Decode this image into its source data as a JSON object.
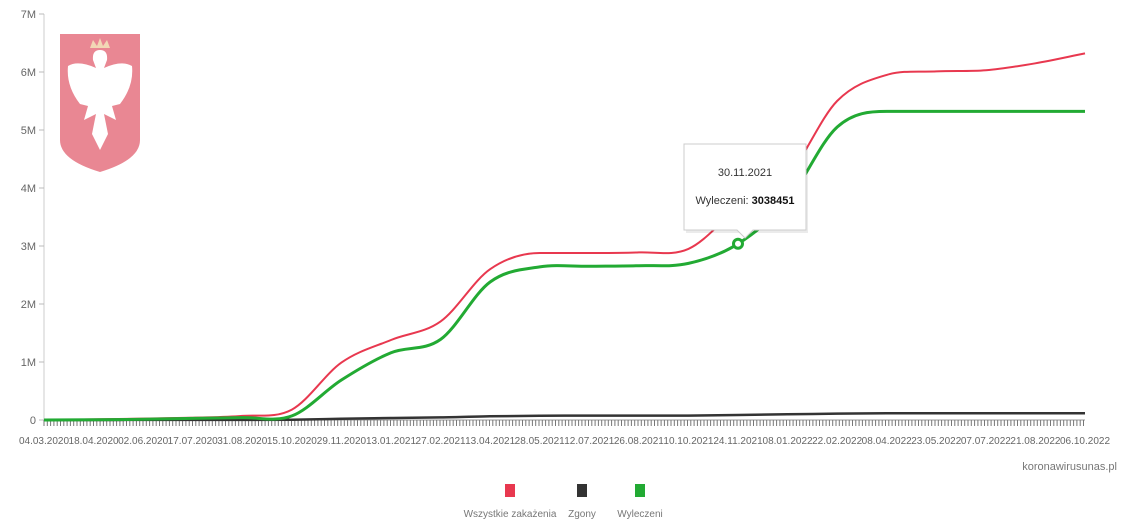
{
  "chart_data": {
    "type": "line",
    "title": "",
    "xlabel": "",
    "ylabel": "",
    "ylim": [
      0,
      7000000
    ],
    "y_ticks": [
      "0",
      "1M",
      "2M",
      "3M",
      "4M",
      "5M",
      "6M",
      "7M"
    ],
    "y_tick_values": [
      0,
      1000000,
      2000000,
      3000000,
      4000000,
      5000000,
      6000000,
      7000000
    ],
    "x_tick_labels": [
      "04.03.2020",
      "18.04.2020",
      "02.06.2020",
      "17.07.2020",
      "31.08.2020",
      "15.10.2020",
      "29.11.2020",
      "13.01.2021",
      "27.02.2021",
      "13.04.2021",
      "28.05.2021",
      "12.07.2021",
      "26.08.2021",
      "10.10.2021",
      "24.11.2021",
      "08.01.2022",
      "22.02.2022",
      "08.04.2022",
      "23.05.2022",
      "07.07.2022",
      "21.08.2022",
      "06.10.2022"
    ],
    "x": [
      "04.03.2020",
      "18.04.2020",
      "02.06.2020",
      "17.07.2020",
      "31.08.2020",
      "15.10.2020",
      "29.11.2020",
      "13.01.2021",
      "27.02.2021",
      "13.04.2021",
      "28.05.2021",
      "12.07.2021",
      "26.08.2021",
      "10.10.2021",
      "24.11.2021",
      "08.01.2022",
      "22.02.2022",
      "08.04.2022",
      "23.05.2022",
      "07.07.2022",
      "21.08.2022",
      "06.10.2022"
    ],
    "series": [
      {
        "name": "Wszystkie zakażenia",
        "color": "#e8384f",
        "values": [
          0,
          10000,
          25000,
          40000,
          70000,
          180000,
          990000,
          1380000,
          1700000,
          2600000,
          2880000,
          2880000,
          2890000,
          2950000,
          3650000,
          4200000,
          5500000,
          5950000,
          6010000,
          6030000,
          6150000,
          6320000
        ]
      },
      {
        "name": "Zgony",
        "color": "#333333",
        "values": [
          0,
          500,
          1500,
          1700,
          2000,
          5000,
          20000,
          35000,
          44000,
          64000,
          74000,
          75000,
          75500,
          76500,
          86000,
          98000,
          110000,
          115000,
          116000,
          116500,
          117000,
          117500
        ]
      },
      {
        "name": "Wyleczeni",
        "color": "#22aa33",
        "values": [
          0,
          4000,
          12000,
          28000,
          42000,
          70000,
          690000,
          1160000,
          1390000,
          2380000,
          2640000,
          2650000,
          2660000,
          2700000,
          3038451,
          3780000,
          5050000,
          5320000,
          5320000,
          5320000,
          5320000,
          5320000
        ]
      }
    ],
    "legend_position": "bottom",
    "grid": false,
    "tooltip": {
      "date": "30.11.2021",
      "label": "Wyleczeni: ",
      "value": "3038451",
      "point_x": "24.11.2021",
      "point_value": 3038451
    },
    "credit": "koronawirusunas.pl",
    "legend": [
      {
        "label": "Wszystkie zakażenia",
        "color": "#e8384f"
      },
      {
        "label": "Zgony",
        "color": "#333333"
      },
      {
        "label": "Wyleczeni",
        "color": "#22aa33"
      }
    ]
  },
  "logo": {
    "name": "polish-coat-of-arms",
    "shield_color": "#e98793",
    "eagle_color": "#ffffff",
    "crown_color": "#f2d7b5"
  }
}
